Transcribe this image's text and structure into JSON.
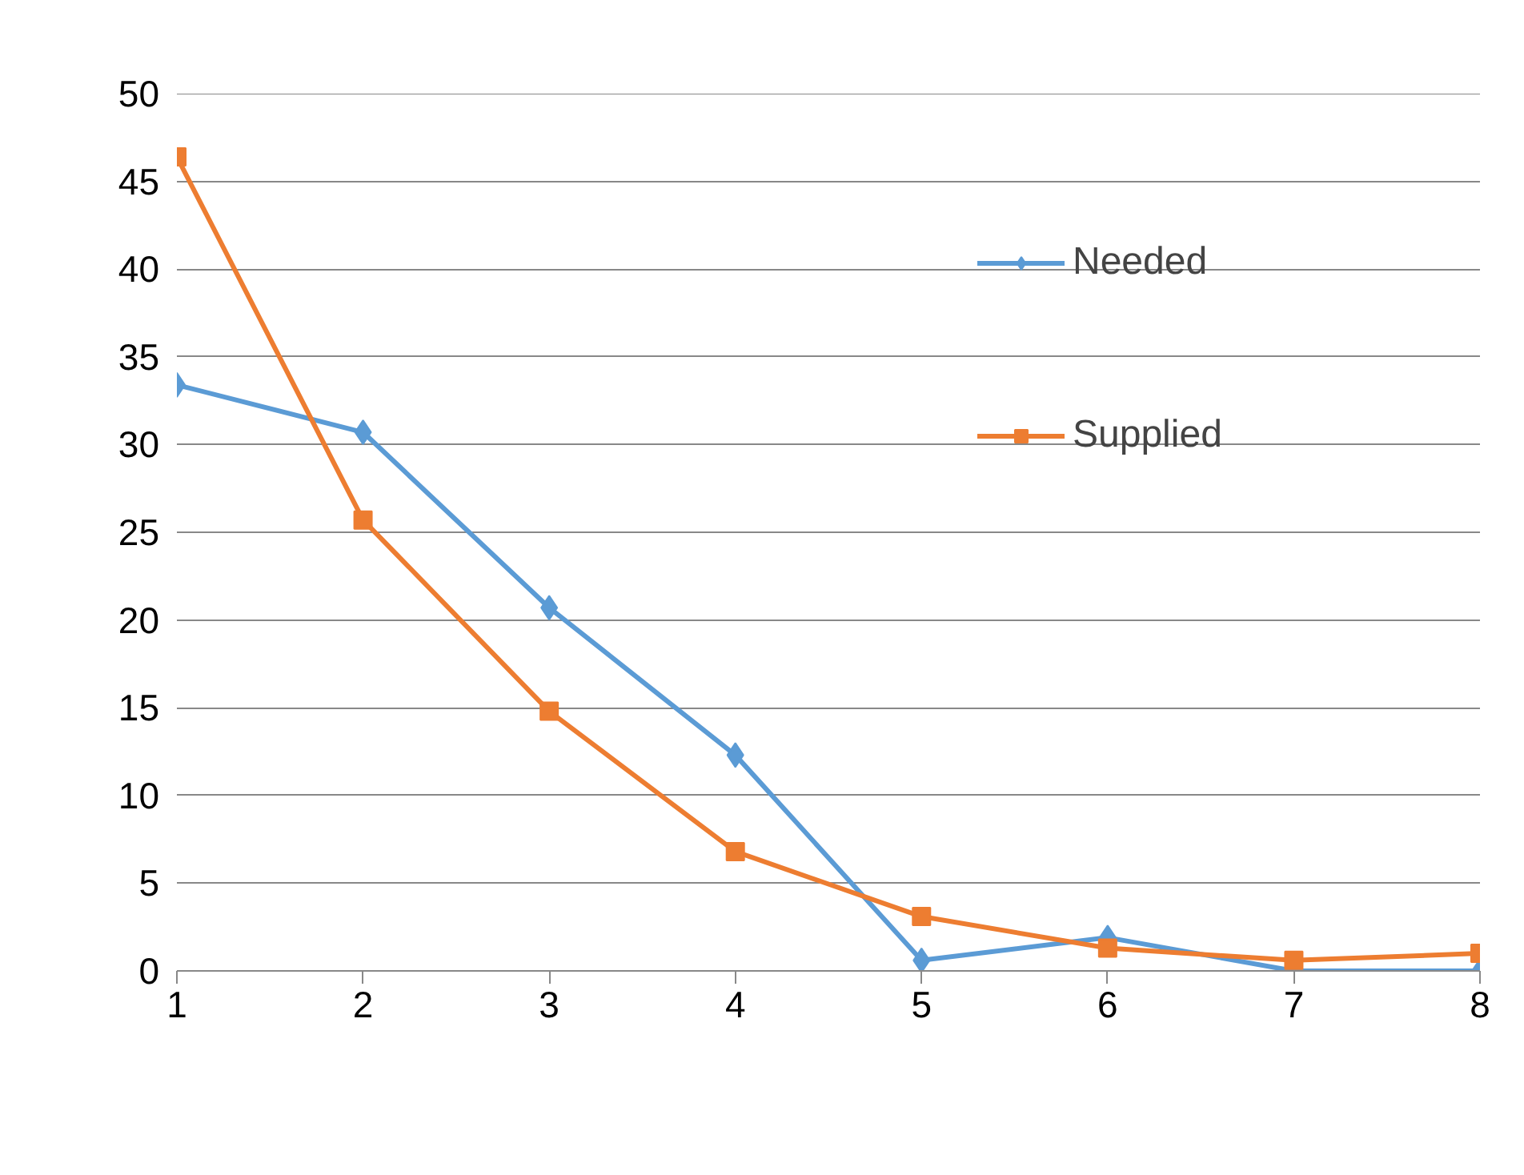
{
  "chart_data": {
    "type": "line",
    "x": [
      1,
      2,
      3,
      4,
      5,
      6,
      7,
      8
    ],
    "series": [
      {
        "name": "Needed",
        "color": "#5b9bd5",
        "marker": "diamond",
        "values": [
          33.4,
          30.7,
          20.7,
          12.3,
          0.6,
          1.9,
          0,
          0
        ]
      },
      {
        "name": "Supplied",
        "color": "#ed7d31",
        "marker": "square",
        "values": [
          46.4,
          25.7,
          14.8,
          6.8,
          3.1,
          1.3,
          0.6,
          1.0
        ]
      }
    ],
    "xlim": [
      1,
      8
    ],
    "xticks": [
      1,
      2,
      3,
      4,
      5,
      6,
      7,
      8
    ],
    "ylim": [
      0,
      50
    ],
    "yticks": [
      0,
      5,
      10,
      15,
      20,
      25,
      30,
      35,
      40,
      45,
      50
    ],
    "grid": "y",
    "legend": "top right",
    "line_style": "solid"
  }
}
